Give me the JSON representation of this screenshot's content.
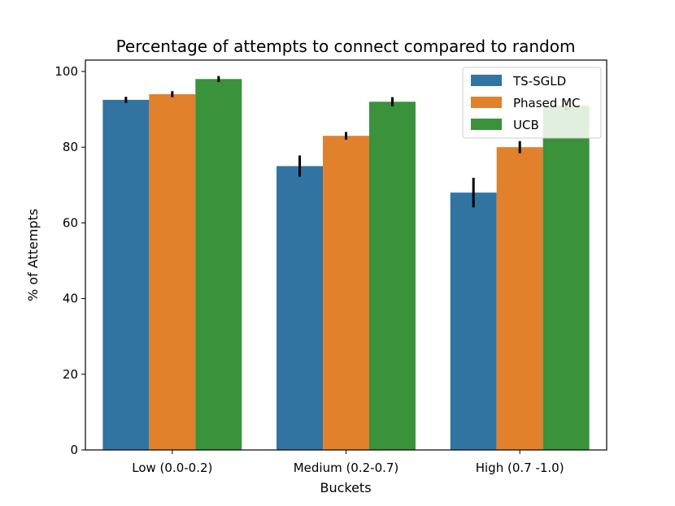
{
  "chart_data": {
    "type": "bar",
    "title": "Percentage of attempts to connect compared to random",
    "xlabel": "Buckets",
    "ylabel": "% of Attempts",
    "categories": [
      "Low (0.0-0.2)",
      "Medium (0.2-0.7)",
      "High (0.7 -1.0)"
    ],
    "ylim": [
      0,
      103
    ],
    "yticks": [
      0,
      20,
      40,
      60,
      80,
      100
    ],
    "grid": false,
    "legend_position": "top-right",
    "series": [
      {
        "name": "TS-SGLD",
        "color": "#3274a1",
        "values": [
          92.5,
          75,
          68
        ],
        "errors": [
          0.8,
          2.8,
          3.9
        ]
      },
      {
        "name": "Phased MC",
        "color": "#e1812c",
        "values": [
          94,
          83,
          80
        ],
        "errors": [
          0.8,
          1.0,
          1.6
        ]
      },
      {
        "name": "UCB",
        "color": "#3a923a",
        "values": [
          98,
          92,
          91
        ],
        "errors": [
          0.8,
          1.2,
          1.4
        ]
      }
    ]
  }
}
